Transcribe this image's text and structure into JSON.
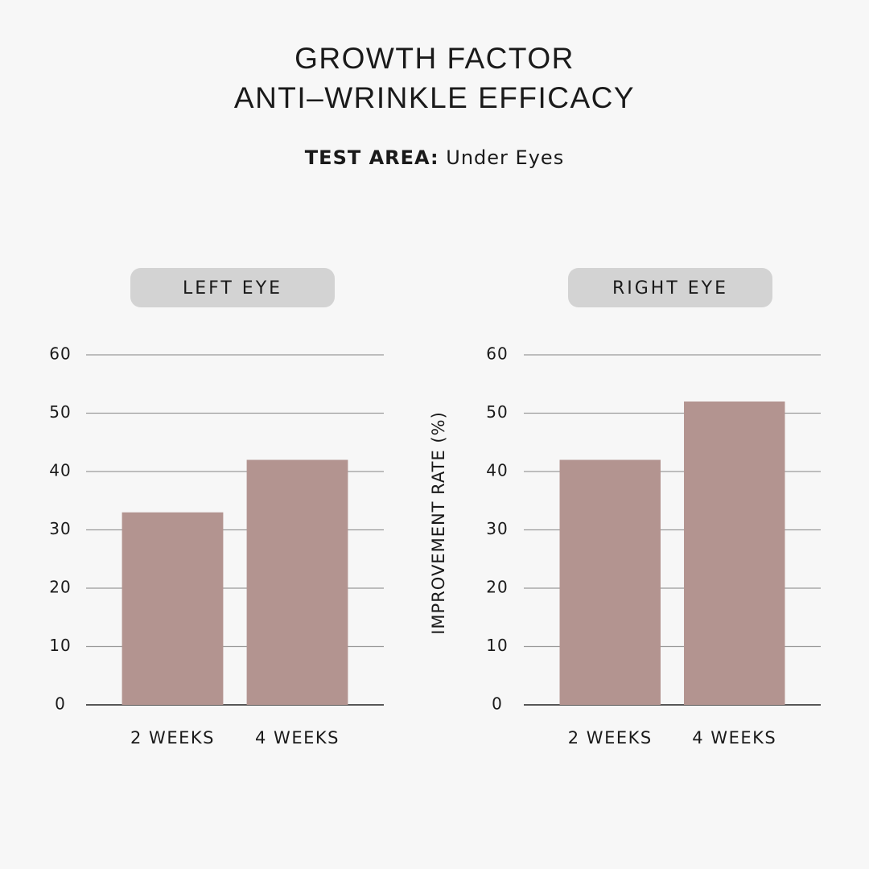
{
  "title_lines": [
    "GROWTH FACTOR",
    "ANTI–WRINKLE EFFICACY"
  ],
  "subtitle": {
    "label": "TEST AREA:",
    "value": "Under Eyes"
  },
  "chart_data": [
    {
      "type": "bar",
      "title": "LEFT EYE",
      "categories": [
        "2 WEEKS",
        "4 WEEKS"
      ],
      "values": [
        33,
        42
      ],
      "color": "#b39490",
      "ylim": [
        0,
        60
      ],
      "yticks": [
        0,
        10,
        20,
        30,
        40,
        50,
        60
      ],
      "grid": true
    },
    {
      "type": "bar",
      "title": "RIGHT EYE",
      "ylabel": "IMPROVEMENT RATE (%)",
      "categories": [
        "2 WEEKS",
        "4 WEEKS"
      ],
      "values": [
        42,
        52
      ],
      "color": "#b39490",
      "ylim": [
        0,
        60
      ],
      "yticks": [
        0,
        10,
        20,
        30,
        40,
        50,
        60
      ],
      "grid": true
    }
  ]
}
